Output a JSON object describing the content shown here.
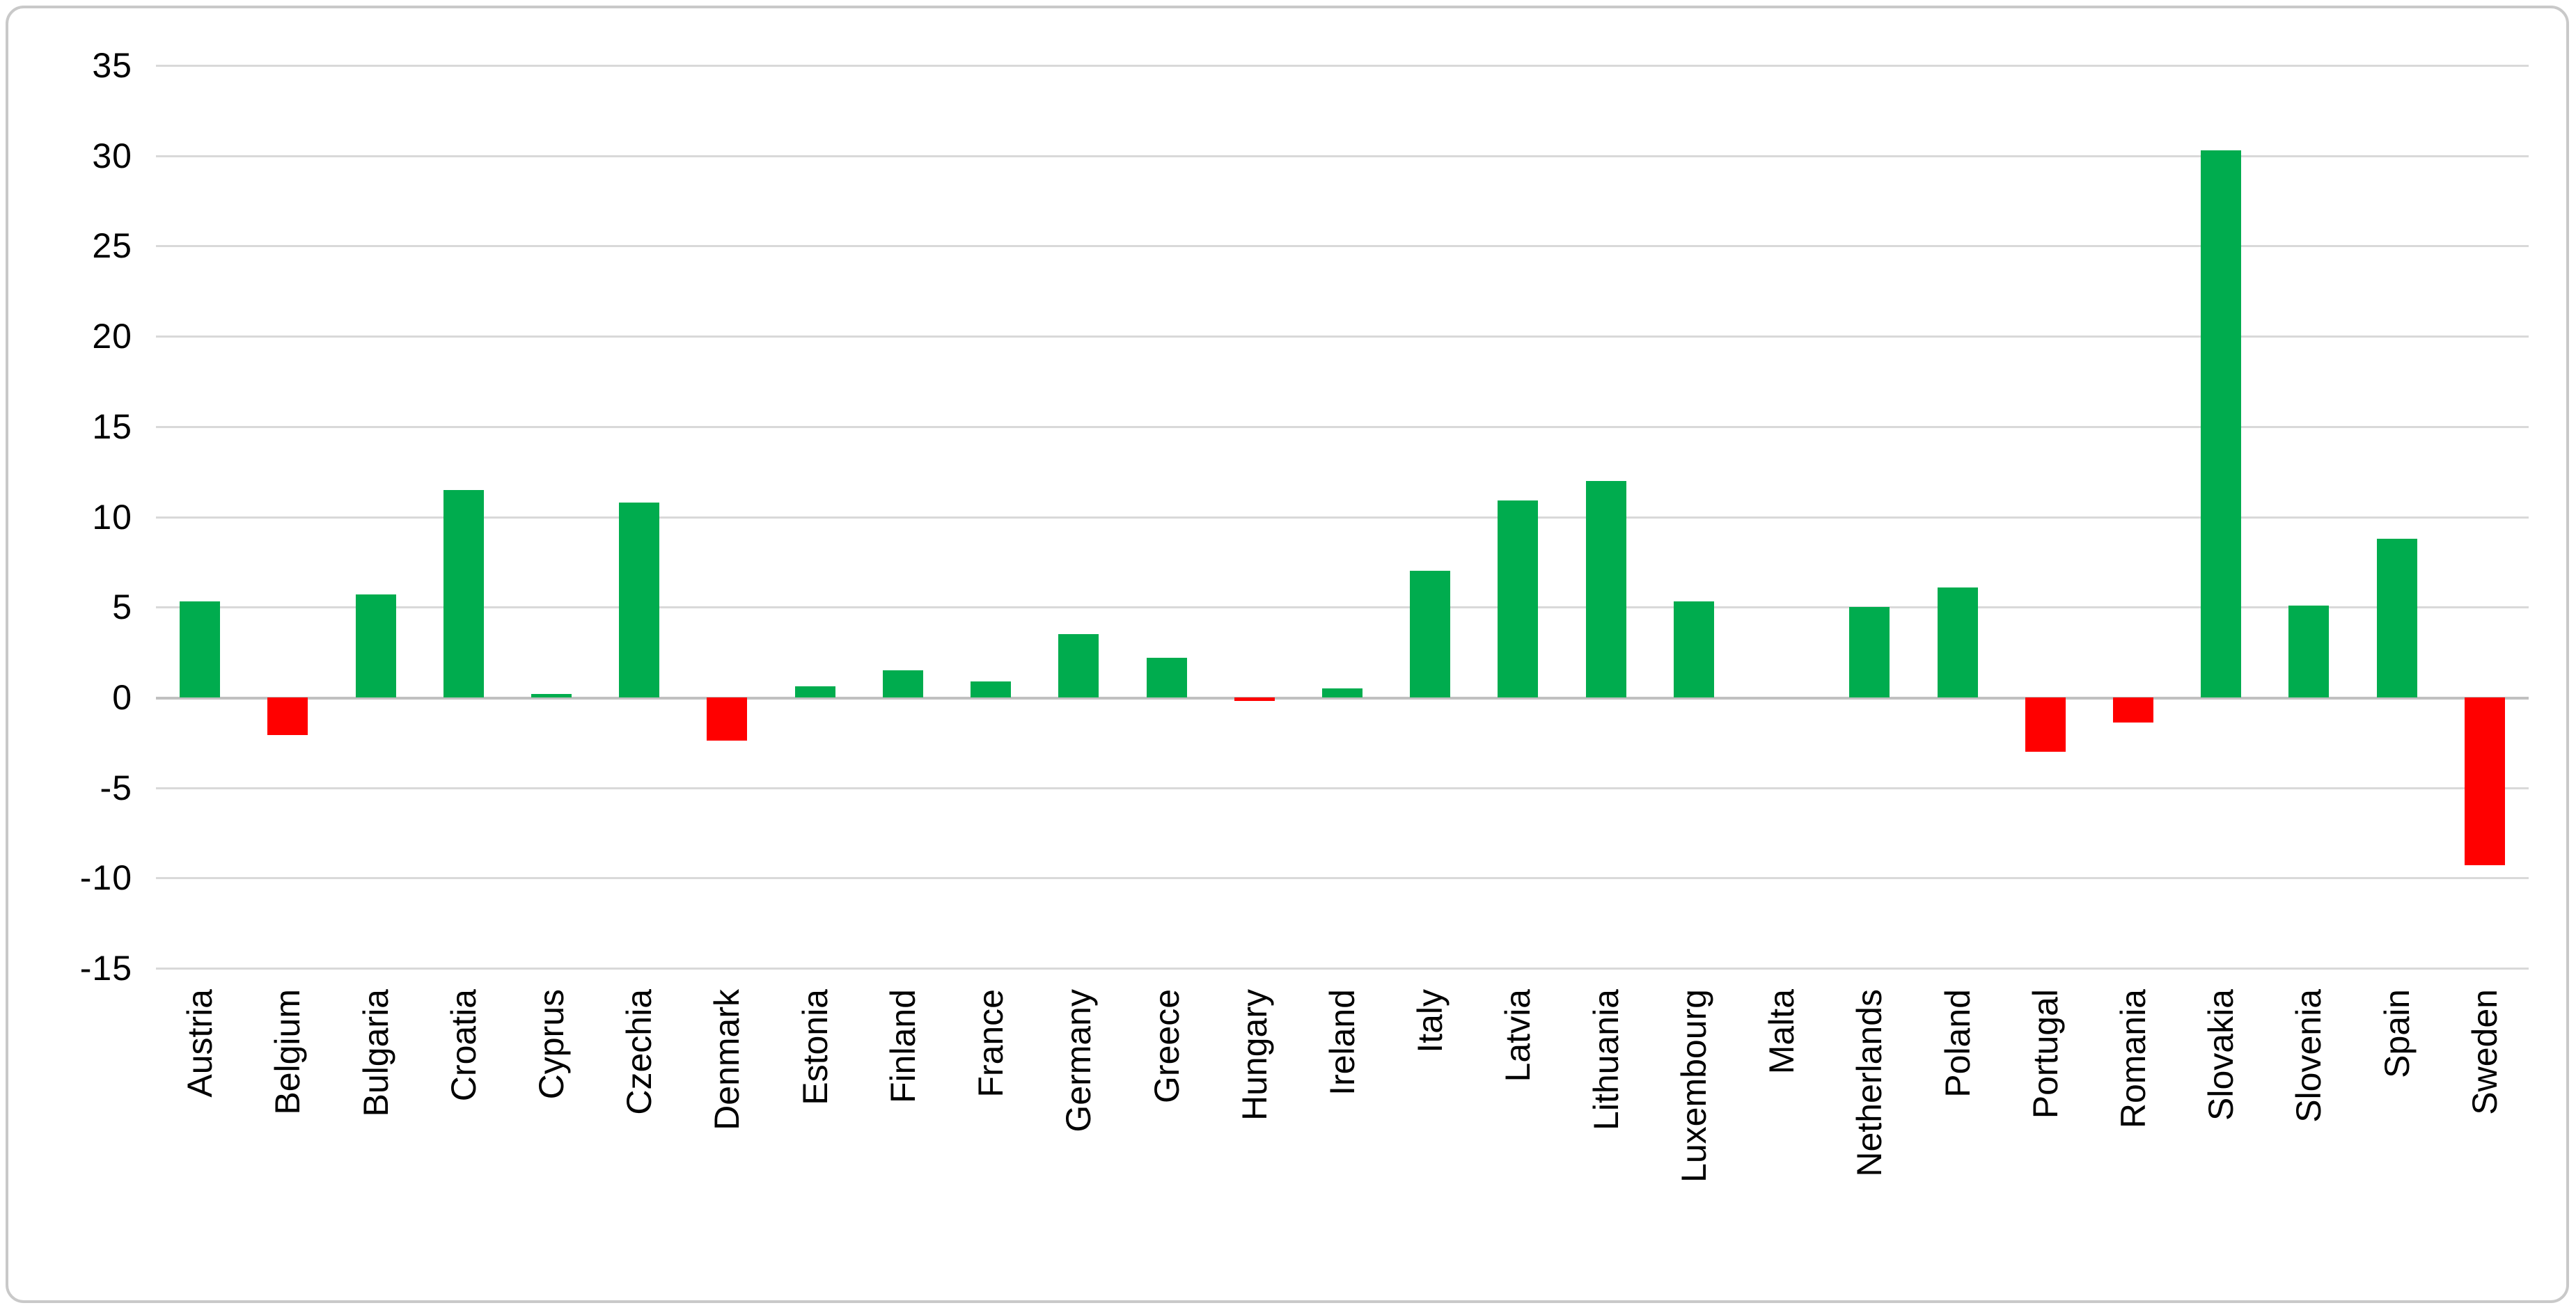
{
  "chart_data": {
    "type": "bar",
    "title": "",
    "subtitle": "",
    "xlabel": "",
    "ylabel": "",
    "categories": [
      "Austria",
      "Belgium",
      "Bulgaria",
      "Croatia",
      "Cyprus",
      "Czechia",
      "Denmark",
      "Estonia",
      "Finland",
      "France",
      "Germany",
      "Greece",
      "Hungary",
      "Ireland",
      "Italy",
      "Latvia",
      "Lithuania",
      "Luxembourg",
      "Malta",
      "Netherlands",
      "Poland",
      "Portugal",
      "Romania",
      "Slovakia",
      "Slovenia",
      "Spain",
      "Sweden"
    ],
    "values": [
      5.3,
      -2.1,
      5.7,
      11.5,
      0.2,
      10.8,
      -2.4,
      0.6,
      1.5,
      0.9,
      3.5,
      2.2,
      -0.2,
      0.5,
      7.0,
      10.9,
      12.0,
      5.3,
      0,
      5.0,
      6.1,
      -3.0,
      -1.4,
      30.3,
      5.1,
      8.8,
      -9.3
    ],
    "ylim": [
      -15,
      35
    ],
    "y_ticks": [
      35,
      30,
      25,
      20,
      15,
      10,
      5,
      0,
      -5,
      -10,
      -15
    ],
    "grid": true,
    "legend": "none",
    "colors": {
      "positive": "#00AC4E",
      "negative": "#FF0000",
      "gridline": "#D9D9D9",
      "zero_line": "#C0C0C0",
      "axis_text": "#000000",
      "frame_border": "#C9C9C9",
      "background": "#FFFFFF"
    }
  }
}
